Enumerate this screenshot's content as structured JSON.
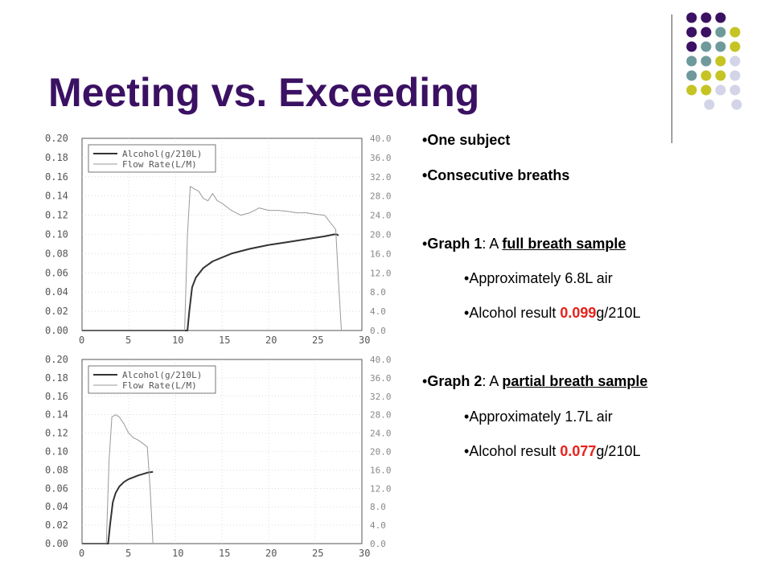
{
  "slide": {
    "title": "Meeting vs. Exceeding",
    "colors": {
      "title": "#3b1163",
      "dot_purple": "#3b1163",
      "dot_teal": "#6f9a9c",
      "dot_olive": "#c5c424",
      "dot_lavender": "#d3d4e8",
      "highlight": "#e8201a"
    }
  },
  "bullets": {
    "item1": "One subject",
    "item2": "Consecutive breaths",
    "graph1": {
      "prefix": "Graph 1",
      "mid": ": A ",
      "link": "full breath sample",
      "sub1": "Approximately 6.8L air",
      "sub2_prefix": "Alcohol result ",
      "sub2_value": "0.099",
      "sub2_suffix": "g/210L"
    },
    "graph2": {
      "prefix": "Graph 2",
      "mid": ": A ",
      "link": "partial breath sample",
      "sub1": "Approximately 1.7L air",
      "sub2_prefix": "Alcohol result ",
      "sub2_value": "0.077",
      "sub2_suffix": "g/210L"
    },
    "bullet_char": "•"
  },
  "chart_data": [
    {
      "type": "line",
      "title": "",
      "x_ticks": [
        "0",
        "5",
        "10",
        "15",
        "20",
        "25",
        "30"
      ],
      "y_left_ticks": [
        "0.20",
        "0.18",
        "0.16",
        "0.14",
        "0.12",
        "0.10",
        "0.08",
        "0.06",
        "0.04",
        "0.02",
        "0.00"
      ],
      "y_right_ticks": [
        "40.0",
        "36.0",
        "32.0",
        "28.0",
        "24.0",
        "20.0",
        "16.0",
        "12.0",
        "8.0",
        "4.0",
        "0.0"
      ],
      "xlim": [
        0,
        30
      ],
      "ylim_left": [
        0,
        0.2
      ],
      "ylim_right": [
        0,
        40
      ],
      "legend": [
        "Alcohol(g/210L)",
        "Flow Rate(L/M)"
      ],
      "legend_position": "top-left",
      "series": [
        {
          "name": "Alcohol(g/210L)",
          "axis": "left",
          "x": [
            0,
            11.3,
            11.5,
            11.8,
            12.2,
            13,
            14,
            16,
            18,
            20,
            22,
            24,
            26,
            27,
            27.3,
            27.5
          ],
          "y": [
            0,
            0,
            0.02,
            0.045,
            0.055,
            0.065,
            0.072,
            0.08,
            0.085,
            0.089,
            0.092,
            0.095,
            0.098,
            0.1,
            0.1,
            0.099
          ]
        },
        {
          "name": "Flow Rate(L/M)",
          "axis": "right",
          "x": [
            0,
            11,
            11.3,
            11.6,
            12,
            12.5,
            13,
            13.5,
            14,
            14.5,
            15,
            16,
            17,
            18,
            19,
            20,
            21,
            22,
            23,
            24,
            25,
            26,
            26.8,
            27.2,
            27.5,
            27.8
          ],
          "y": [
            0,
            0,
            20,
            30,
            29.5,
            29,
            27.5,
            27,
            28.5,
            27,
            26.5,
            25,
            24,
            24.5,
            25.5,
            25,
            25,
            24.8,
            24.5,
            24.5,
            24.2,
            24,
            22,
            21,
            10,
            0
          ]
        }
      ]
    },
    {
      "type": "line",
      "title": "",
      "x_ticks": [
        "0",
        "5",
        "10",
        "15",
        "20",
        "25",
        "30"
      ],
      "y_left_ticks": [
        "0.20",
        "0.18",
        "0.16",
        "0.14",
        "0.12",
        "0.10",
        "0.08",
        "0.06",
        "0.04",
        "0.02",
        "0.00"
      ],
      "y_right_ticks": [
        "40.0",
        "36.0",
        "32.0",
        "28.0",
        "24.0",
        "20.0",
        "16.0",
        "12.0",
        "8.0",
        "4.0",
        "0.0"
      ],
      "xlim": [
        0,
        30
      ],
      "ylim_left": [
        0,
        0.2
      ],
      "ylim_right": [
        0,
        40
      ],
      "legend": [
        "Alcohol(g/210L)",
        "Flow Rate(L/M)"
      ],
      "legend_position": "top-left",
      "series": [
        {
          "name": "Alcohol(g/210L)",
          "axis": "left",
          "x": [
            0,
            2.8,
            3,
            3.3,
            3.6,
            4,
            4.5,
            5,
            6,
            7,
            7.6
          ],
          "y": [
            0,
            0,
            0.02,
            0.045,
            0.055,
            0.062,
            0.067,
            0.07,
            0.074,
            0.077,
            0.078
          ]
        },
        {
          "name": "Flow Rate(L/M)",
          "axis": "right",
          "x": [
            0,
            2.6,
            2.9,
            3.2,
            3.6,
            4,
            4.5,
            5,
            5.5,
            6,
            6.5,
            7,
            7.3,
            7.6
          ],
          "y": [
            0,
            0,
            18,
            27.5,
            28,
            27.5,
            26,
            24,
            23,
            22.5,
            21.8,
            21,
            12,
            0
          ]
        }
      ]
    }
  ]
}
